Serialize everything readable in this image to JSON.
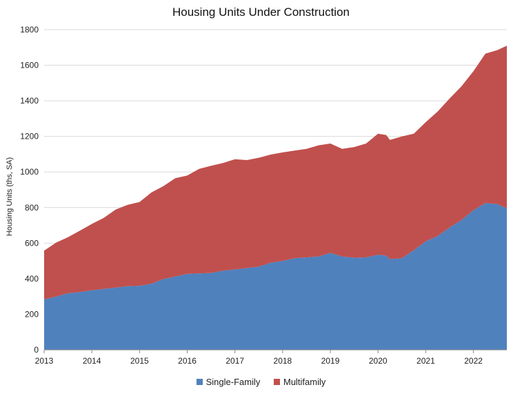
{
  "chart_data": {
    "type": "area",
    "stacked": true,
    "title": "Housing Units Under Construction",
    "xlabel": "",
    "ylabel": "Housing Units (ths, SA)",
    "ylim": [
      0,
      1800
    ],
    "yticks": [
      0,
      200,
      400,
      600,
      800,
      1000,
      1200,
      1400,
      1600,
      1800
    ],
    "xlim": [
      2013.0,
      2022.7
    ],
    "xticks": [
      "2013",
      "2014",
      "2015",
      "2016",
      "2017",
      "2018",
      "2019",
      "2020",
      "2021",
      "2022"
    ],
    "grid": "horizontal",
    "legend": "bottom",
    "x": [
      2013.0,
      2013.25,
      2013.5,
      2013.75,
      2014.0,
      2014.25,
      2014.5,
      2014.75,
      2015.0,
      2015.25,
      2015.5,
      2015.75,
      2016.0,
      2016.25,
      2016.5,
      2016.75,
      2017.0,
      2017.25,
      2017.5,
      2017.75,
      2018.0,
      2018.25,
      2018.5,
      2018.75,
      2019.0,
      2019.25,
      2019.5,
      2019.75,
      2020.0,
      2020.17,
      2020.25,
      2020.5,
      2020.75,
      2021.0,
      2021.25,
      2021.5,
      2021.75,
      2022.0,
      2022.25,
      2022.5,
      2022.7
    ],
    "series": [
      {
        "name": "Single-Family",
        "color": "#4f81bd",
        "values": [
          283,
          300,
          318,
          325,
          335,
          342,
          350,
          358,
          360,
          372,
          398,
          412,
          427,
          430,
          432,
          445,
          452,
          460,
          468,
          490,
          500,
          515,
          520,
          525,
          545,
          525,
          518,
          520,
          535,
          530,
          510,
          515,
          560,
          610,
          640,
          688,
          730,
          785,
          825,
          820,
          795
        ]
      },
      {
        "name": "Multifamily",
        "color": "#c0504d",
        "values": [
          275,
          303,
          315,
          345,
          373,
          400,
          439,
          457,
          471,
          513,
          522,
          553,
          553,
          587,
          603,
          605,
          620,
          607,
          612,
          608,
          610,
          605,
          610,
          625,
          615,
          605,
          622,
          640,
          680,
          678,
          670,
          685,
          655,
          670,
          700,
          725,
          752,
          782,
          840,
          865,
          915
        ]
      }
    ]
  }
}
